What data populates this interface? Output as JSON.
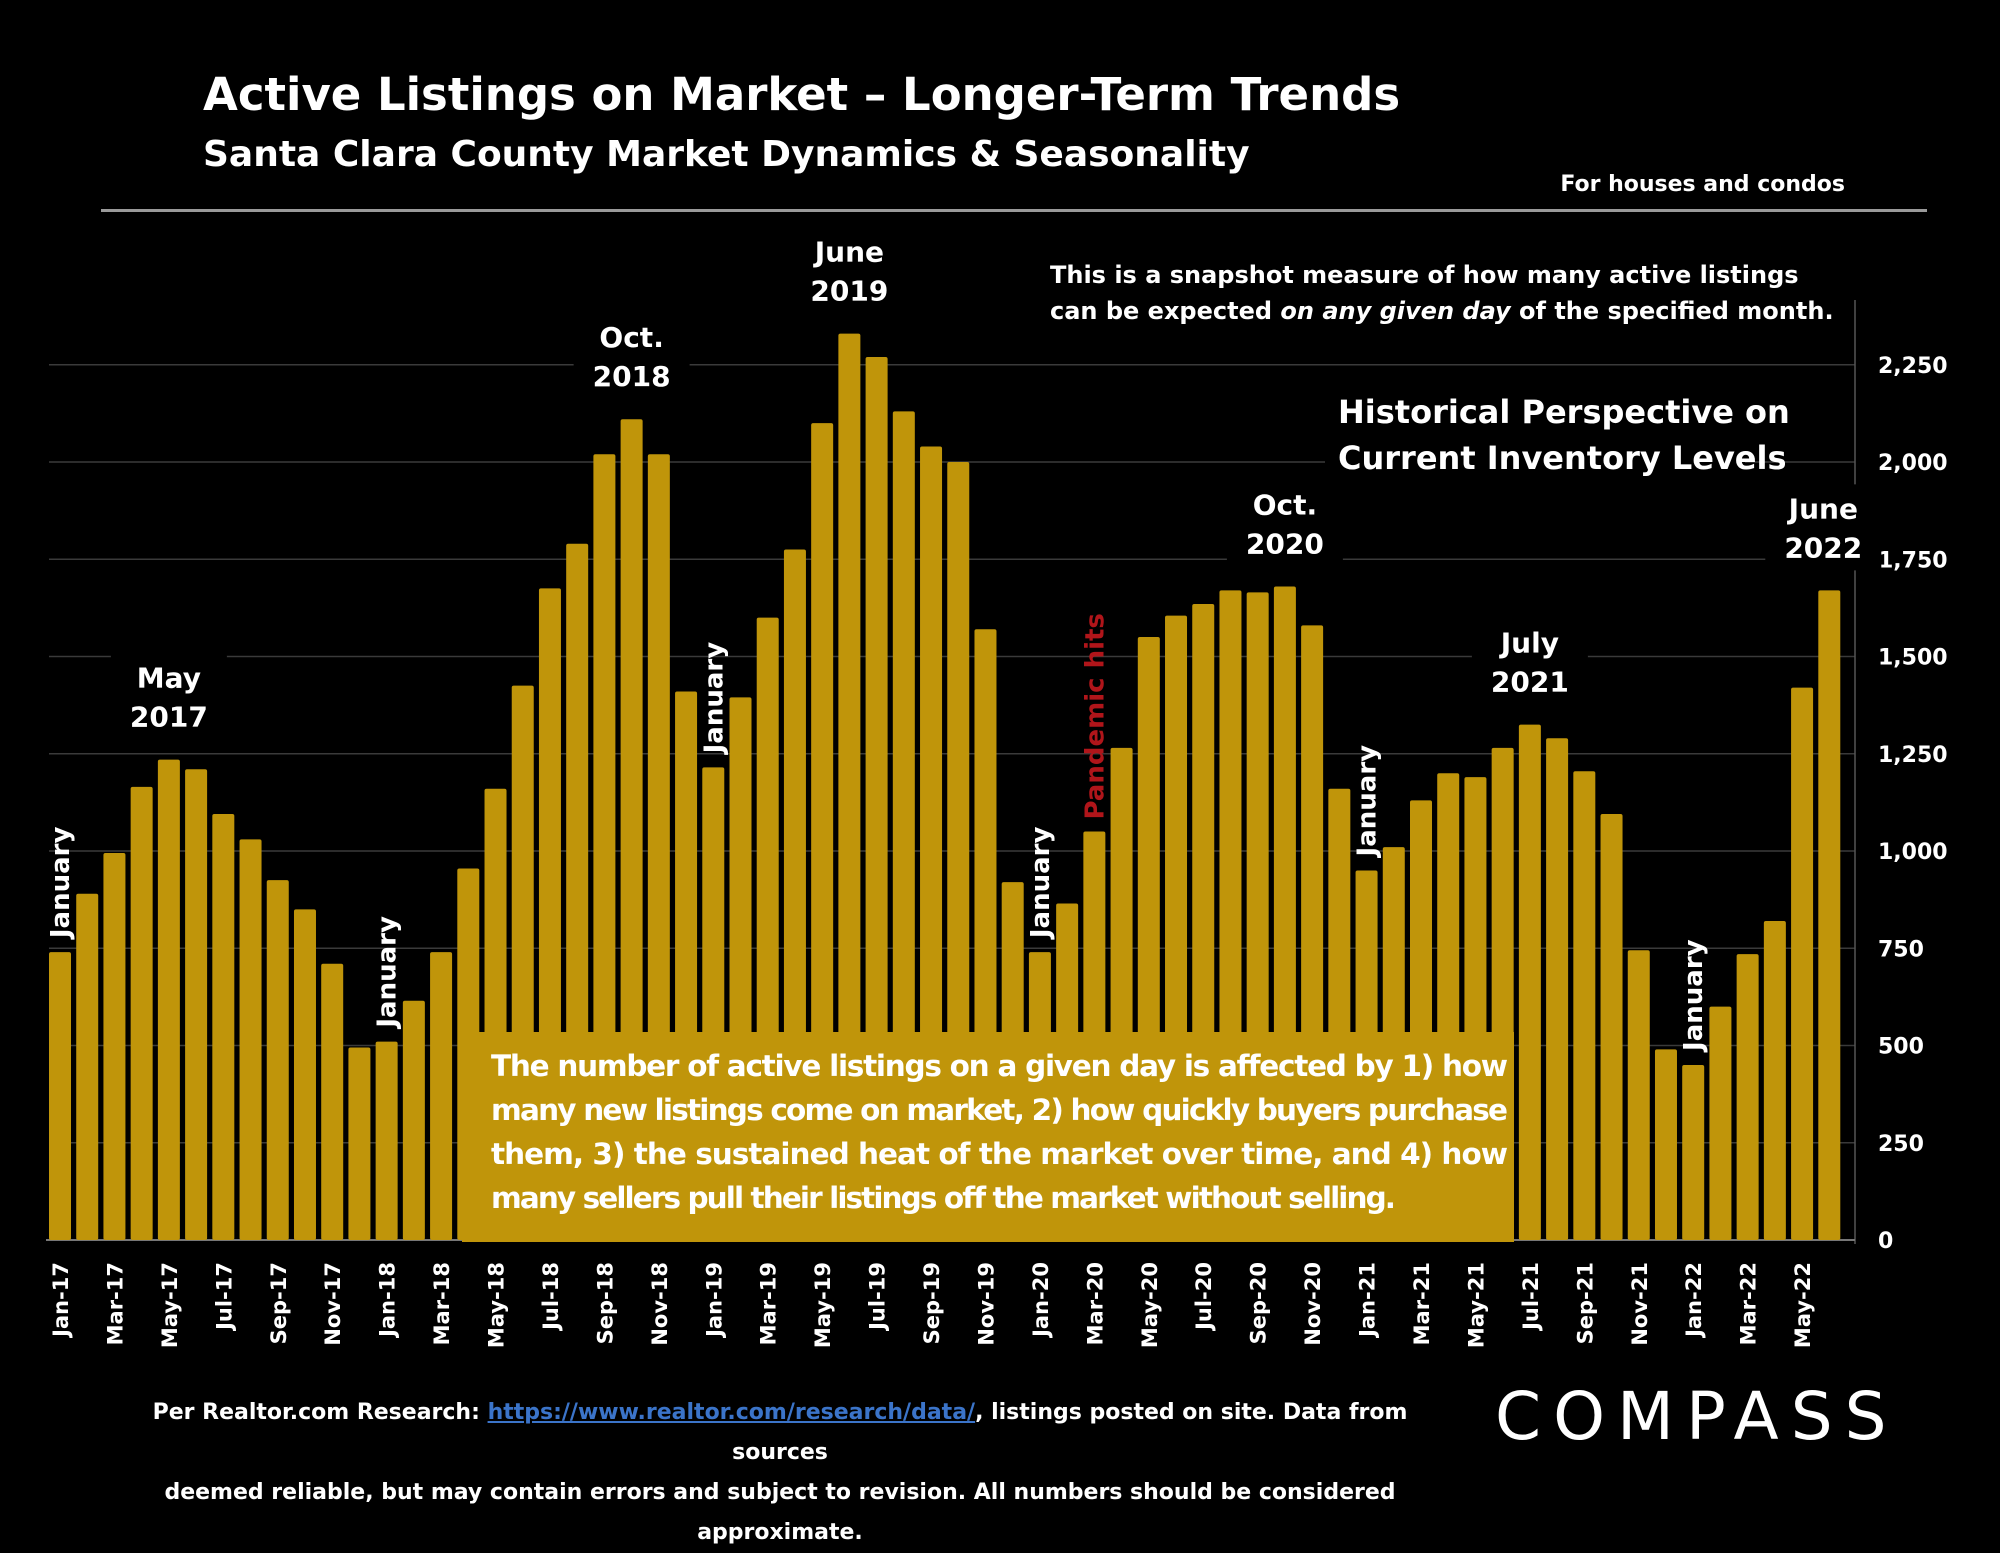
{
  "header": {
    "title": "Active Listings on Market – Longer-Term Trends",
    "subtitle": "Santa Clara County Market Dynamics & Seasonality",
    "note": "For houses and condos"
  },
  "chart_data": {
    "type": "bar",
    "categories": [
      "Jan-17",
      "Feb-17",
      "Mar-17",
      "Apr-17",
      "May-17",
      "Jun-17",
      "Jul-17",
      "Aug-17",
      "Sep-17",
      "Oct-17",
      "Nov-17",
      "Dec-17",
      "Jan-18",
      "Feb-18",
      "Mar-18",
      "Apr-18",
      "May-18",
      "Jun-18",
      "Jul-18",
      "Aug-18",
      "Sep-18",
      "Oct-18",
      "Nov-18",
      "Dec-18",
      "Jan-19",
      "Feb-19",
      "Mar-19",
      "Apr-19",
      "May-19",
      "Jun-19",
      "Jul-19",
      "Aug-19",
      "Sep-19",
      "Oct-19",
      "Nov-19",
      "Dec-19",
      "Jan-20",
      "Feb-20",
      "Mar-20",
      "Apr-20",
      "May-20",
      "Jun-20",
      "Jul-20",
      "Aug-20",
      "Sep-20",
      "Oct-20",
      "Nov-20",
      "Dec-20",
      "Jan-21",
      "Feb-21",
      "Mar-21",
      "Apr-21",
      "May-21",
      "Jun-21",
      "Jul-21",
      "Aug-21",
      "Sep-21",
      "Oct-21",
      "Nov-21",
      "Dec-21",
      "Jan-22",
      "Feb-22",
      "Mar-22",
      "Apr-22",
      "May-22",
      "Jun-22"
    ],
    "visible_x_labels": [
      "Jan-17",
      "Mar-17",
      "May-17",
      "Jul-17",
      "Sep-17",
      "Nov-17",
      "Jan-18",
      "Mar-18",
      "May-18",
      "Jul-18",
      "Sep-18",
      "Nov-18",
      "Jan-19",
      "Mar-19",
      "May-19",
      "Jul-19",
      "Sep-19",
      "Nov-19",
      "Jan-20",
      "Mar-20",
      "May-20",
      "Jul-20",
      "Sep-20",
      "Nov-20",
      "Jan-21",
      "Mar-21",
      "May-21",
      "Jul-21",
      "Sep-21",
      "Nov-21",
      "Jan-22",
      "Mar-22",
      "May-22"
    ],
    "values": [
      740,
      890,
      995,
      1165,
      1235,
      1210,
      1095,
      1030,
      925,
      850,
      710,
      495,
      510,
      615,
      740,
      955,
      1160,
      1425,
      1675,
      1790,
      2020,
      2110,
      2020,
      1410,
      1215,
      1395,
      1600,
      1775,
      2100,
      2330,
      2270,
      2130,
      2040,
      2000,
      1570,
      920,
      740,
      865,
      1050,
      1265,
      1550,
      1605,
      1635,
      1670,
      1665,
      1680,
      1580,
      1160,
      950,
      1010,
      1130,
      1200,
      1190,
      1265,
      1325,
      1290,
      1205,
      1095,
      745,
      490,
      450,
      600,
      735,
      820,
      1420,
      1670
    ],
    "ylim": [
      0,
      2400
    ],
    "yticks": [
      "0",
      "250",
      "500",
      "750",
      "1,000",
      "1,250",
      "1,500",
      "1,750",
      "2,000",
      "2,250"
    ],
    "ytick_values": [
      0,
      250,
      500,
      750,
      1000,
      1250,
      1500,
      1750,
      2000,
      2250
    ],
    "bar_color": "#C0950A",
    "grid": true,
    "y_axis_side": "right",
    "annotations": [
      {
        "id": "may2017",
        "lines": [
          "May",
          "2017"
        ]
      },
      {
        "id": "oct2018",
        "lines": [
          "Oct.",
          "2018"
        ]
      },
      {
        "id": "jun2019",
        "lines": [
          "June",
          "2019"
        ]
      },
      {
        "id": "oct2020",
        "lines": [
          "Oct.",
          "2020"
        ]
      },
      {
        "id": "jul2021",
        "lines": [
          "July",
          "2021"
        ]
      },
      {
        "id": "jun2022",
        "lines": [
          "June",
          "2022"
        ]
      }
    ],
    "january_labels": [
      "January",
      "January",
      "January",
      "January",
      "January",
      "January"
    ],
    "pandemic_label": "Pandemic hits",
    "pandemic_color": "#B0151A",
    "snapshot_note": [
      "This is a snapshot measure of how many active listings",
      "can be expected ",
      "on any given day",
      " of the specified month."
    ],
    "perspective_note": [
      "Historical Perspective on",
      "Current Inventory Levels"
    ],
    "callout": [
      "The number of active listings on a given day is affected by 1) how",
      "many new listings come on market, 2) how quickly buyers purchase",
      "them, 3) the sustained heat of the market over time, and 4) how",
      "many sellers pull their listings off the market without selling."
    ]
  },
  "footer": {
    "prefix": "Per Realtor.com Research:  ",
    "link": "https://www.realtor.com/research/data/",
    "suffix": ", listings posted on site. Data from sources",
    "line2": "deemed reliable, but may contain errors and subject to revision. All numbers should be considered approximate."
  },
  "logo": "COMPASS"
}
